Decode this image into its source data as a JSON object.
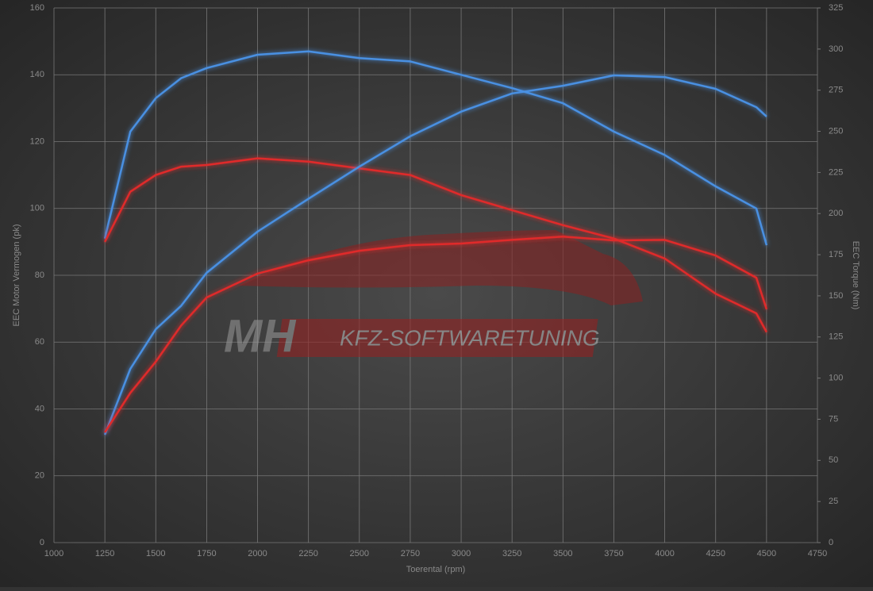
{
  "chart_data": {
    "type": "line",
    "ylabel": "EEC Motor Vermogen (pk)",
    "y2label": "EEC Torque (Nm)",
    "xlabel": "Toerental (rpm)",
    "watermark": [
      "MH",
      "KFZ-SOFTWARETUNING"
    ],
    "x": [
      1250,
      1375,
      1500,
      1625,
      1750,
      2000,
      2250,
      2500,
      2750,
      3000,
      3250,
      3500,
      3750,
      4000,
      4250,
      4450,
      4500
    ],
    "series": [
      {
        "color": "#4a90e2",
        "values": [
          91,
          123,
          133,
          139,
          142,
          146,
          147,
          145,
          144,
          140,
          136,
          131.5,
          123,
          116,
          106.6,
          100,
          89
        ]
      },
      {
        "color": "#e02a2a",
        "values": [
          90,
          105,
          110,
          112.5,
          113,
          115,
          114,
          112,
          110,
          104,
          99.5,
          95,
          91,
          85,
          74.5,
          68.6,
          63
        ]
      },
      {
        "color": "#4a90e2",
        "axis": "y2",
        "values": [
          65.6,
          105.6,
          129.7,
          144,
          164,
          189,
          209,
          228.5,
          247,
          262,
          273,
          277.7,
          284,
          283,
          275.8,
          264.7,
          259
        ]
      },
      {
        "color": "#e02a2a",
        "axis": "y2",
        "values": [
          67,
          91,
          110,
          132,
          149,
          163.5,
          171.6,
          177.4,
          180.8,
          181.8,
          184,
          186,
          183.7,
          184,
          174.5,
          161,
          141.8
        ]
      }
    ],
    "xlim": [
      1000,
      4750
    ],
    "xticks": [
      1000,
      1250,
      1500,
      1750,
      2000,
      2250,
      2500,
      2750,
      3000,
      3250,
      3500,
      3750,
      4000,
      4250,
      4500,
      4750
    ],
    "ylim": [
      0,
      160
    ],
    "yticks": [
      0,
      20,
      40,
      60,
      80,
      100,
      120,
      140,
      160
    ],
    "y2lim": [
      0,
      325
    ],
    "y2ticks": [
      0,
      25,
      50,
      75,
      100,
      125,
      150,
      175,
      200,
      225,
      250,
      275,
      300,
      325
    ],
    "grid": true
  }
}
